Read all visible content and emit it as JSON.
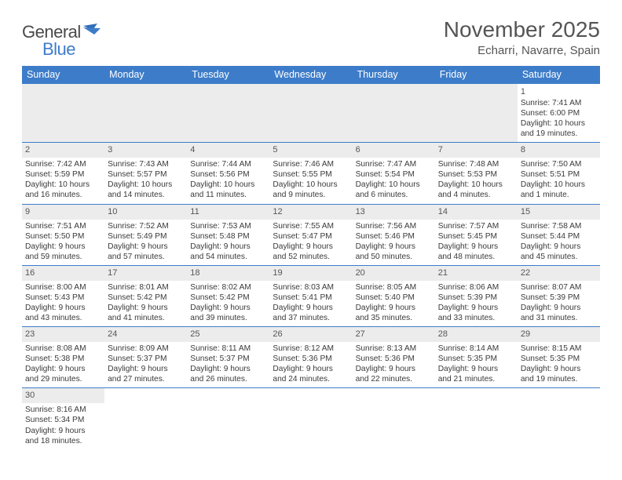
{
  "logo": {
    "general": "General",
    "blue": "Blue"
  },
  "header": {
    "monthTitle": "November 2025",
    "location": "Echarri, Navarre, Spain"
  },
  "colors": {
    "header_bg": "#3d7cc9",
    "header_text": "#ffffff",
    "body_text": "#3a3a3a",
    "title_text": "#555555",
    "empty_bg": "#ececec",
    "row_border": "#3d7cc9",
    "page_bg": "#ffffff"
  },
  "weekdays": [
    "Sunday",
    "Monday",
    "Tuesday",
    "Wednesday",
    "Thursday",
    "Friday",
    "Saturday"
  ],
  "weeks": [
    [
      {
        "empty": true,
        "lead": true
      },
      {
        "empty": true,
        "lead": true
      },
      {
        "empty": true,
        "lead": true
      },
      {
        "empty": true,
        "lead": true
      },
      {
        "empty": true,
        "lead": true
      },
      {
        "empty": true,
        "lead": true
      },
      {
        "num": "1",
        "sunrise": "Sunrise: 7:41 AM",
        "sunset": "Sunset: 6:00 PM",
        "daylight1": "Daylight: 10 hours",
        "daylight2": "and 19 minutes.",
        "noBand": true
      }
    ],
    [
      {
        "num": "2",
        "sunrise": "Sunrise: 7:42 AM",
        "sunset": "Sunset: 5:59 PM",
        "daylight1": "Daylight: 10 hours",
        "daylight2": "and 16 minutes."
      },
      {
        "num": "3",
        "sunrise": "Sunrise: 7:43 AM",
        "sunset": "Sunset: 5:57 PM",
        "daylight1": "Daylight: 10 hours",
        "daylight2": "and 14 minutes."
      },
      {
        "num": "4",
        "sunrise": "Sunrise: 7:44 AM",
        "sunset": "Sunset: 5:56 PM",
        "daylight1": "Daylight: 10 hours",
        "daylight2": "and 11 minutes."
      },
      {
        "num": "5",
        "sunrise": "Sunrise: 7:46 AM",
        "sunset": "Sunset: 5:55 PM",
        "daylight1": "Daylight: 10 hours",
        "daylight2": "and 9 minutes."
      },
      {
        "num": "6",
        "sunrise": "Sunrise: 7:47 AM",
        "sunset": "Sunset: 5:54 PM",
        "daylight1": "Daylight: 10 hours",
        "daylight2": "and 6 minutes."
      },
      {
        "num": "7",
        "sunrise": "Sunrise: 7:48 AM",
        "sunset": "Sunset: 5:53 PM",
        "daylight1": "Daylight: 10 hours",
        "daylight2": "and 4 minutes."
      },
      {
        "num": "8",
        "sunrise": "Sunrise: 7:50 AM",
        "sunset": "Sunset: 5:51 PM",
        "daylight1": "Daylight: 10 hours",
        "daylight2": "and 1 minute."
      }
    ],
    [
      {
        "num": "9",
        "sunrise": "Sunrise: 7:51 AM",
        "sunset": "Sunset: 5:50 PM",
        "daylight1": "Daylight: 9 hours",
        "daylight2": "and 59 minutes."
      },
      {
        "num": "10",
        "sunrise": "Sunrise: 7:52 AM",
        "sunset": "Sunset: 5:49 PM",
        "daylight1": "Daylight: 9 hours",
        "daylight2": "and 57 minutes."
      },
      {
        "num": "11",
        "sunrise": "Sunrise: 7:53 AM",
        "sunset": "Sunset: 5:48 PM",
        "daylight1": "Daylight: 9 hours",
        "daylight2": "and 54 minutes."
      },
      {
        "num": "12",
        "sunrise": "Sunrise: 7:55 AM",
        "sunset": "Sunset: 5:47 PM",
        "daylight1": "Daylight: 9 hours",
        "daylight2": "and 52 minutes."
      },
      {
        "num": "13",
        "sunrise": "Sunrise: 7:56 AM",
        "sunset": "Sunset: 5:46 PM",
        "daylight1": "Daylight: 9 hours",
        "daylight2": "and 50 minutes."
      },
      {
        "num": "14",
        "sunrise": "Sunrise: 7:57 AM",
        "sunset": "Sunset: 5:45 PM",
        "daylight1": "Daylight: 9 hours",
        "daylight2": "and 48 minutes."
      },
      {
        "num": "15",
        "sunrise": "Sunrise: 7:58 AM",
        "sunset": "Sunset: 5:44 PM",
        "daylight1": "Daylight: 9 hours",
        "daylight2": "and 45 minutes."
      }
    ],
    [
      {
        "num": "16",
        "sunrise": "Sunrise: 8:00 AM",
        "sunset": "Sunset: 5:43 PM",
        "daylight1": "Daylight: 9 hours",
        "daylight2": "and 43 minutes."
      },
      {
        "num": "17",
        "sunrise": "Sunrise: 8:01 AM",
        "sunset": "Sunset: 5:42 PM",
        "daylight1": "Daylight: 9 hours",
        "daylight2": "and 41 minutes."
      },
      {
        "num": "18",
        "sunrise": "Sunrise: 8:02 AM",
        "sunset": "Sunset: 5:42 PM",
        "daylight1": "Daylight: 9 hours",
        "daylight2": "and 39 minutes."
      },
      {
        "num": "19",
        "sunrise": "Sunrise: 8:03 AM",
        "sunset": "Sunset: 5:41 PM",
        "daylight1": "Daylight: 9 hours",
        "daylight2": "and 37 minutes."
      },
      {
        "num": "20",
        "sunrise": "Sunrise: 8:05 AM",
        "sunset": "Sunset: 5:40 PM",
        "daylight1": "Daylight: 9 hours",
        "daylight2": "and 35 minutes."
      },
      {
        "num": "21",
        "sunrise": "Sunrise: 8:06 AM",
        "sunset": "Sunset: 5:39 PM",
        "daylight1": "Daylight: 9 hours",
        "daylight2": "and 33 minutes."
      },
      {
        "num": "22",
        "sunrise": "Sunrise: 8:07 AM",
        "sunset": "Sunset: 5:39 PM",
        "daylight1": "Daylight: 9 hours",
        "daylight2": "and 31 minutes."
      }
    ],
    [
      {
        "num": "23",
        "sunrise": "Sunrise: 8:08 AM",
        "sunset": "Sunset: 5:38 PM",
        "daylight1": "Daylight: 9 hours",
        "daylight2": "and 29 minutes."
      },
      {
        "num": "24",
        "sunrise": "Sunrise: 8:09 AM",
        "sunset": "Sunset: 5:37 PM",
        "daylight1": "Daylight: 9 hours",
        "daylight2": "and 27 minutes."
      },
      {
        "num": "25",
        "sunrise": "Sunrise: 8:11 AM",
        "sunset": "Sunset: 5:37 PM",
        "daylight1": "Daylight: 9 hours",
        "daylight2": "and 26 minutes."
      },
      {
        "num": "26",
        "sunrise": "Sunrise: 8:12 AM",
        "sunset": "Sunset: 5:36 PM",
        "daylight1": "Daylight: 9 hours",
        "daylight2": "and 24 minutes."
      },
      {
        "num": "27",
        "sunrise": "Sunrise: 8:13 AM",
        "sunset": "Sunset: 5:36 PM",
        "daylight1": "Daylight: 9 hours",
        "daylight2": "and 22 minutes."
      },
      {
        "num": "28",
        "sunrise": "Sunrise: 8:14 AM",
        "sunset": "Sunset: 5:35 PM",
        "daylight1": "Daylight: 9 hours",
        "daylight2": "and 21 minutes."
      },
      {
        "num": "29",
        "sunrise": "Sunrise: 8:15 AM",
        "sunset": "Sunset: 5:35 PM",
        "daylight1": "Daylight: 9 hours",
        "daylight2": "and 19 minutes."
      }
    ],
    [
      {
        "num": "30",
        "sunrise": "Sunrise: 8:16 AM",
        "sunset": "Sunset: 5:34 PM",
        "daylight1": "Daylight: 9 hours",
        "daylight2": "and 18 minutes."
      },
      {
        "empty": true,
        "lead": false
      },
      {
        "empty": true,
        "lead": false
      },
      {
        "empty": true,
        "lead": false
      },
      {
        "empty": true,
        "lead": false
      },
      {
        "empty": true,
        "lead": false
      },
      {
        "empty": true,
        "lead": false
      }
    ]
  ]
}
